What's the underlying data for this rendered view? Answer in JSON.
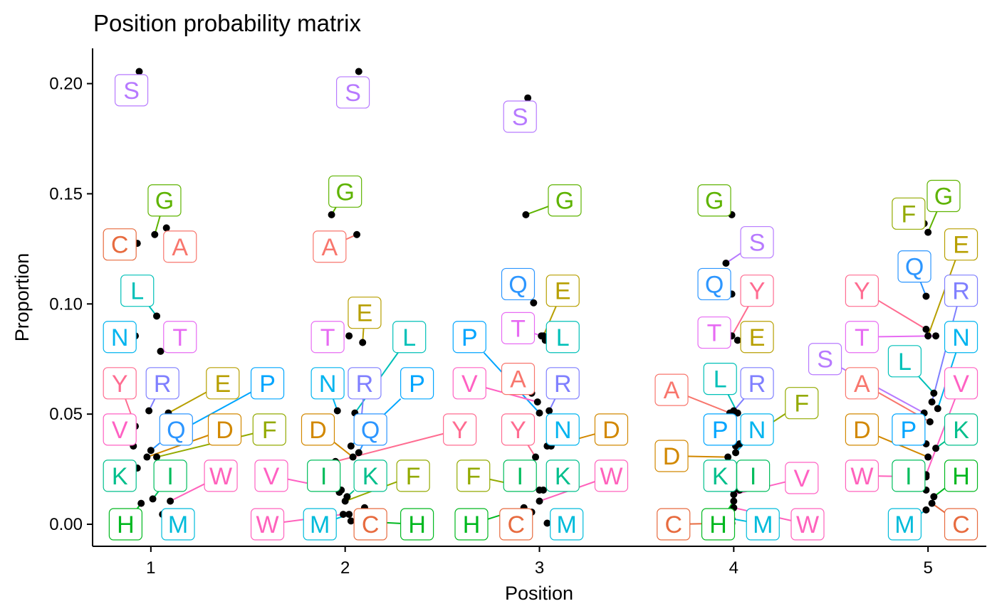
{
  "chart_data": {
    "type": "scatter",
    "title": "Position probability matrix",
    "xlabel": "Position",
    "ylabel": "Proportion",
    "x_ticks": [
      "1",
      "2",
      "3",
      "4",
      "5"
    ],
    "y_ticks": [
      "0.00",
      "0.05",
      "0.10",
      "0.15",
      "0.20"
    ],
    "xlim": [
      0.7,
      5.3
    ],
    "ylim": [
      -0.01,
      0.216
    ],
    "grid": false,
    "legend": "none",
    "colors": {
      "A": "#F8766D",
      "C": "#E76B3F",
      "D": "#D28800",
      "E": "#B79F00",
      "F": "#93AA00",
      "G": "#5EB300",
      "H": "#00B81F",
      "I": "#00BD5C",
      "K": "#00BF8C",
      "L": "#00C0B8",
      "M": "#00BBDA",
      "N": "#00B4EF",
      "P": "#00A5FF",
      "Q": "#2D96FF",
      "R": "#7F7FFF",
      "S": "#B77AFF",
      "T": "#E76BF3",
      "V": "#FF61C3",
      "W": "#FF62BC",
      "Y": "#FF6C91"
    },
    "points": [
      {
        "pos": 1,
        "aa": "S",
        "value": 0.2055,
        "jx": 0.94,
        "lx": 0.9,
        "ly": 0.197
      },
      {
        "pos": 1,
        "aa": "G",
        "value": 0.1315,
        "jx": 1.02,
        "lx": 1.07,
        "ly": 0.147
      },
      {
        "pos": 1,
        "aa": "A",
        "value": 0.1345,
        "jx": 1.08,
        "lx": 1.15,
        "ly": 0.126
      },
      {
        "pos": 1,
        "aa": "C",
        "value": 0.1275,
        "jx": 0.93,
        "lx": 0.84,
        "ly": 0.127
      },
      {
        "pos": 1,
        "aa": "L",
        "value": 0.0945,
        "jx": 1.03,
        "lx": 0.93,
        "ly": 0.106
      },
      {
        "pos": 1,
        "aa": "N",
        "value": 0.0855,
        "jx": 0.92,
        "lx": 0.84,
        "ly": 0.085
      },
      {
        "pos": 1,
        "aa": "T",
        "value": 0.0785,
        "jx": 1.05,
        "lx": 1.15,
        "ly": 0.085
      },
      {
        "pos": 1,
        "aa": "Y",
        "value": 0.0445,
        "jx": 0.92,
        "lx": 0.84,
        "ly": 0.064
      },
      {
        "pos": 1,
        "aa": "R",
        "value": 0.0515,
        "jx": 0.99,
        "lx": 1.06,
        "ly": 0.064
      },
      {
        "pos": 1,
        "aa": "E",
        "value": 0.0505,
        "jx": 1.09,
        "lx": 1.37,
        "ly": 0.064
      },
      {
        "pos": 1,
        "aa": "P",
        "value": 0.0385,
        "jx": 1.07,
        "lx": 1.6,
        "ly": 0.064
      },
      {
        "pos": 1,
        "aa": "V",
        "value": 0.0355,
        "jx": 0.91,
        "lx": 0.84,
        "ly": 0.043
      },
      {
        "pos": 1,
        "aa": "Q",
        "value": 0.0335,
        "jx": 1.0,
        "lx": 1.13,
        "ly": 0.043
      },
      {
        "pos": 1,
        "aa": "D",
        "value": 0.0305,
        "jx": 0.98,
        "lx": 1.38,
        "ly": 0.043
      },
      {
        "pos": 1,
        "aa": "F",
        "value": 0.0305,
        "jx": 1.03,
        "lx": 1.61,
        "ly": 0.043
      },
      {
        "pos": 1,
        "aa": "K",
        "value": 0.0255,
        "jx": 0.93,
        "lx": 0.84,
        "ly": 0.022
      },
      {
        "pos": 1,
        "aa": "I",
        "value": 0.0115,
        "jx": 1.01,
        "lx": 1.1,
        "ly": 0.022
      },
      {
        "pos": 1,
        "aa": "W",
        "value": 0.0105,
        "jx": 1.1,
        "lx": 1.36,
        "ly": 0.022
      },
      {
        "pos": 1,
        "aa": "H",
        "value": 0.0095,
        "jx": 0.95,
        "lx": 0.87,
        "ly": 0.0
      },
      {
        "pos": 1,
        "aa": "M",
        "value": 0.0045,
        "jx": 1.06,
        "lx": 1.14,
        "ly": 0.0
      },
      {
        "pos": 2,
        "aa": "S",
        "value": 0.2055,
        "jx": 2.07,
        "lx": 2.04,
        "ly": 0.196
      },
      {
        "pos": 2,
        "aa": "G",
        "value": 0.1405,
        "jx": 1.93,
        "lx": 2.0,
        "ly": 0.151
      },
      {
        "pos": 2,
        "aa": "A",
        "value": 0.1315,
        "jx": 2.06,
        "lx": 1.92,
        "ly": 0.126
      },
      {
        "pos": 2,
        "aa": "E",
        "value": 0.0825,
        "jx": 2.09,
        "lx": 2.1,
        "ly": 0.096
      },
      {
        "pos": 2,
        "aa": "T",
        "value": 0.0855,
        "jx": 2.02,
        "lx": 1.91,
        "ly": 0.085
      },
      {
        "pos": 2,
        "aa": "L",
        "value": 0.0505,
        "jx": 2.05,
        "lx": 2.33,
        "ly": 0.085
      },
      {
        "pos": 2,
        "aa": "N",
        "value": 0.0515,
        "jx": 1.96,
        "lx": 1.91,
        "ly": 0.064
      },
      {
        "pos": 2,
        "aa": "R",
        "value": 0.0445,
        "jx": 2.08,
        "lx": 2.1,
        "ly": 0.064
      },
      {
        "pos": 2,
        "aa": "P",
        "value": 0.0355,
        "jx": 2.03,
        "lx": 2.37,
        "ly": 0.064
      },
      {
        "pos": 2,
        "aa": "D",
        "value": 0.0305,
        "jx": 2.04,
        "lx": 1.86,
        "ly": 0.043
      },
      {
        "pos": 2,
        "aa": "Q",
        "value": 0.0325,
        "jx": 2.07,
        "lx": 2.13,
        "ly": 0.043
      },
      {
        "pos": 2,
        "aa": "Y",
        "value": 0.0285,
        "jx": 1.95,
        "lx": 2.59,
        "ly": 0.043
      },
      {
        "pos": 2,
        "aa": "V",
        "value": 0.0155,
        "jx": 1.98,
        "lx": 1.62,
        "ly": 0.022
      },
      {
        "pos": 2,
        "aa": "I",
        "value": 0.0145,
        "jx": 1.97,
        "lx": 1.89,
        "ly": 0.022
      },
      {
        "pos": 2,
        "aa": "K",
        "value": 0.0125,
        "jx": 2.01,
        "lx": 2.13,
        "ly": 0.022
      },
      {
        "pos": 2,
        "aa": "F",
        "value": 0.0105,
        "jx": 2.0,
        "lx": 2.35,
        "ly": 0.022
      },
      {
        "pos": 2,
        "aa": "W",
        "value": 0.0045,
        "jx": 1.99,
        "lx": 1.6,
        "ly": 0.0
      },
      {
        "pos": 2,
        "aa": "M",
        "value": 0.0045,
        "jx": 2.02,
        "lx": 1.87,
        "ly": 0.0
      },
      {
        "pos": 2,
        "aa": "C",
        "value": 0.0075,
        "jx": 2.1,
        "lx": 2.13,
        "ly": 0.0
      },
      {
        "pos": 2,
        "aa": "H",
        "value": 0.0015,
        "jx": 2.03,
        "lx": 2.37,
        "ly": 0.0
      },
      {
        "pos": 3,
        "aa": "S",
        "value": 0.1935,
        "jx": 2.94,
        "lx": 2.9,
        "ly": 0.185
      },
      {
        "pos": 3,
        "aa": "G",
        "value": 0.1405,
        "jx": 2.93,
        "lx": 3.13,
        "ly": 0.147
      },
      {
        "pos": 3,
        "aa": "Q",
        "value": 0.1005,
        "jx": 2.97,
        "lx": 2.89,
        "ly": 0.109
      },
      {
        "pos": 3,
        "aa": "E",
        "value": 0.0855,
        "jx": 3.02,
        "lx": 3.12,
        "ly": 0.106
      },
      {
        "pos": 3,
        "aa": "T",
        "value": 0.0855,
        "jx": 3.01,
        "lx": 2.89,
        "ly": 0.089
      },
      {
        "pos": 3,
        "aa": "L",
        "value": 0.0835,
        "jx": 3.03,
        "lx": 3.12,
        "ly": 0.085
      },
      {
        "pos": 3,
        "aa": "P",
        "value": 0.0505,
        "jx": 3.0,
        "lx": 2.64,
        "ly": 0.085
      },
      {
        "pos": 3,
        "aa": "A",
        "value": 0.0595,
        "jx": 2.96,
        "lx": 2.89,
        "ly": 0.066
      },
      {
        "pos": 3,
        "aa": "V",
        "value": 0.0555,
        "jx": 2.99,
        "lx": 2.64,
        "ly": 0.064
      },
      {
        "pos": 3,
        "aa": "R",
        "value": 0.0515,
        "jx": 3.05,
        "lx": 3.12,
        "ly": 0.064
      },
      {
        "pos": 3,
        "aa": "Y",
        "value": 0.0305,
        "jx": 2.98,
        "lx": 2.89,
        "ly": 0.043
      },
      {
        "pos": 3,
        "aa": "N",
        "value": 0.0355,
        "jx": 3.04,
        "lx": 3.12,
        "ly": 0.043
      },
      {
        "pos": 3,
        "aa": "D",
        "value": 0.0355,
        "jx": 3.06,
        "lx": 3.37,
        "ly": 0.043
      },
      {
        "pos": 3,
        "aa": "F",
        "value": 0.0165,
        "jx": 2.95,
        "lx": 2.66,
        "ly": 0.022
      },
      {
        "pos": 3,
        "aa": "I",
        "value": 0.0155,
        "jx": 3.0,
        "lx": 2.9,
        "ly": 0.022
      },
      {
        "pos": 3,
        "aa": "K",
        "value": 0.0155,
        "jx": 3.02,
        "lx": 3.12,
        "ly": 0.022
      },
      {
        "pos": 3,
        "aa": "W",
        "value": 0.0105,
        "jx": 3.0,
        "lx": 3.37,
        "ly": 0.022
      },
      {
        "pos": 3,
        "aa": "H",
        "value": 0.0075,
        "jx": 2.92,
        "lx": 2.65,
        "ly": 0.0
      },
      {
        "pos": 3,
        "aa": "C",
        "value": 0.0055,
        "jx": 2.96,
        "lx": 2.88,
        "ly": 0.0
      },
      {
        "pos": 3,
        "aa": "M",
        "value": 0.0005,
        "jx": 3.04,
        "lx": 3.14,
        "ly": 0.0
      },
      {
        "pos": 4,
        "aa": "G",
        "value": 0.1405,
        "jx": 3.99,
        "lx": 3.9,
        "ly": 0.147
      },
      {
        "pos": 4,
        "aa": "S",
        "value": 0.1185,
        "jx": 3.96,
        "lx": 4.12,
        "ly": 0.128
      },
      {
        "pos": 4,
        "aa": "Q",
        "value": 0.1045,
        "jx": 3.99,
        "lx": 3.9,
        "ly": 0.109
      },
      {
        "pos": 4,
        "aa": "Y",
        "value": 0.0855,
        "jx": 3.99,
        "lx": 4.12,
        "ly": 0.106
      },
      {
        "pos": 4,
        "aa": "T",
        "value": 0.0865,
        "jx": 3.97,
        "lx": 3.9,
        "ly": 0.087
      },
      {
        "pos": 4,
        "aa": "E",
        "value": 0.0835,
        "jx": 4.02,
        "lx": 4.12,
        "ly": 0.085
      },
      {
        "pos": 4,
        "aa": "L",
        "value": 0.0505,
        "jx": 4.02,
        "lx": 3.93,
        "ly": 0.066
      },
      {
        "pos": 4,
        "aa": "R",
        "value": 0.0515,
        "jx": 4.0,
        "lx": 4.12,
        "ly": 0.064
      },
      {
        "pos": 4,
        "aa": "A",
        "value": 0.0505,
        "jx": 3.98,
        "lx": 3.68,
        "ly": 0.061
      },
      {
        "pos": 4,
        "aa": "F",
        "value": 0.0365,
        "jx": 4.03,
        "lx": 4.35,
        "ly": 0.055
      },
      {
        "pos": 4,
        "aa": "P",
        "value": 0.0355,
        "jx": 4.01,
        "lx": 3.93,
        "ly": 0.043
      },
      {
        "pos": 4,
        "aa": "N",
        "value": 0.0325,
        "jx": 4.01,
        "lx": 4.12,
        "ly": 0.043
      },
      {
        "pos": 4,
        "aa": "D",
        "value": 0.0305,
        "jx": 3.97,
        "lx": 3.68,
        "ly": 0.031
      },
      {
        "pos": 4,
        "aa": "K",
        "value": 0.0155,
        "jx": 4.0,
        "lx": 3.93,
        "ly": 0.022
      },
      {
        "pos": 4,
        "aa": "I",
        "value": 0.0155,
        "jx": 4.03,
        "lx": 4.1,
        "ly": 0.022
      },
      {
        "pos": 4,
        "aa": "V",
        "value": 0.0135,
        "jx": 4.0,
        "lx": 4.35,
        "ly": 0.021
      },
      {
        "pos": 4,
        "aa": "H",
        "value": 0.0105,
        "jx": 4.0,
        "lx": 3.92,
        "ly": 0.0
      },
      {
        "pos": 4,
        "aa": "W",
        "value": 0.0075,
        "jx": 4.0,
        "lx": 4.38,
        "ly": 0.0
      },
      {
        "pos": 4,
        "aa": "M",
        "value": 0.0025,
        "jx": 3.99,
        "lx": 4.15,
        "ly": 0.0
      },
      {
        "pos": 4,
        "aa": "C",
        "value": 0.0005,
        "jx": 3.99,
        "lx": 3.69,
        "ly": 0.0
      },
      {
        "pos": 5,
        "aa": "G",
        "value": 0.1325,
        "jx": 5.0,
        "lx": 5.08,
        "ly": 0.149
      },
      {
        "pos": 5,
        "aa": "F",
        "value": 0.1365,
        "jx": 4.98,
        "lx": 4.9,
        "ly": 0.141
      },
      {
        "pos": 5,
        "aa": "E",
        "value": 0.0855,
        "jx": 5.0,
        "lx": 5.17,
        "ly": 0.127
      },
      {
        "pos": 5,
        "aa": "Q",
        "value": 0.1035,
        "jx": 4.99,
        "lx": 4.93,
        "ly": 0.117
      },
      {
        "pos": 5,
        "aa": "R",
        "value": 0.0555,
        "jx": 5.02,
        "lx": 5.17,
        "ly": 0.106
      },
      {
        "pos": 5,
        "aa": "Y",
        "value": 0.0885,
        "jx": 4.99,
        "lx": 4.66,
        "ly": 0.106
      },
      {
        "pos": 5,
        "aa": "T",
        "value": 0.0855,
        "jx": 5.04,
        "lx": 4.66,
        "ly": 0.085
      },
      {
        "pos": 5,
        "aa": "N",
        "value": 0.0525,
        "jx": 5.05,
        "lx": 5.17,
        "ly": 0.085
      },
      {
        "pos": 5,
        "aa": "S",
        "value": 0.0505,
        "jx": 4.98,
        "lx": 4.47,
        "ly": 0.075
      },
      {
        "pos": 5,
        "aa": "L",
        "value": 0.0595,
        "jx": 5.03,
        "lx": 4.88,
        "ly": 0.074
      },
      {
        "pos": 5,
        "aa": "A",
        "value": 0.0465,
        "jx": 5.01,
        "lx": 4.66,
        "ly": 0.064
      },
      {
        "pos": 5,
        "aa": "V",
        "value": 0.0225,
        "jx": 4.99,
        "lx": 5.17,
        "ly": 0.064
      },
      {
        "pos": 5,
        "aa": "D",
        "value": 0.0305,
        "jx": 5.0,
        "lx": 4.66,
        "ly": 0.043
      },
      {
        "pos": 5,
        "aa": "P",
        "value": 0.0365,
        "jx": 4.99,
        "lx": 4.9,
        "ly": 0.043
      },
      {
        "pos": 5,
        "aa": "K",
        "value": 0.0345,
        "jx": 5.04,
        "lx": 5.17,
        "ly": 0.043
      },
      {
        "pos": 5,
        "aa": "W",
        "value": 0.0215,
        "jx": 4.99,
        "lx": 4.66,
        "ly": 0.022
      },
      {
        "pos": 5,
        "aa": "I",
        "value": 0.0155,
        "jx": 4.99,
        "lx": 4.9,
        "ly": 0.022
      },
      {
        "pos": 5,
        "aa": "H",
        "value": 0.0125,
        "jx": 5.03,
        "lx": 5.17,
        "ly": 0.022
      },
      {
        "pos": 5,
        "aa": "M",
        "value": 0.0065,
        "jx": 4.99,
        "lx": 4.88,
        "ly": 0.0
      },
      {
        "pos": 5,
        "aa": "C",
        "value": 0.0095,
        "jx": 5.02,
        "lx": 5.17,
        "ly": 0.0
      }
    ]
  }
}
